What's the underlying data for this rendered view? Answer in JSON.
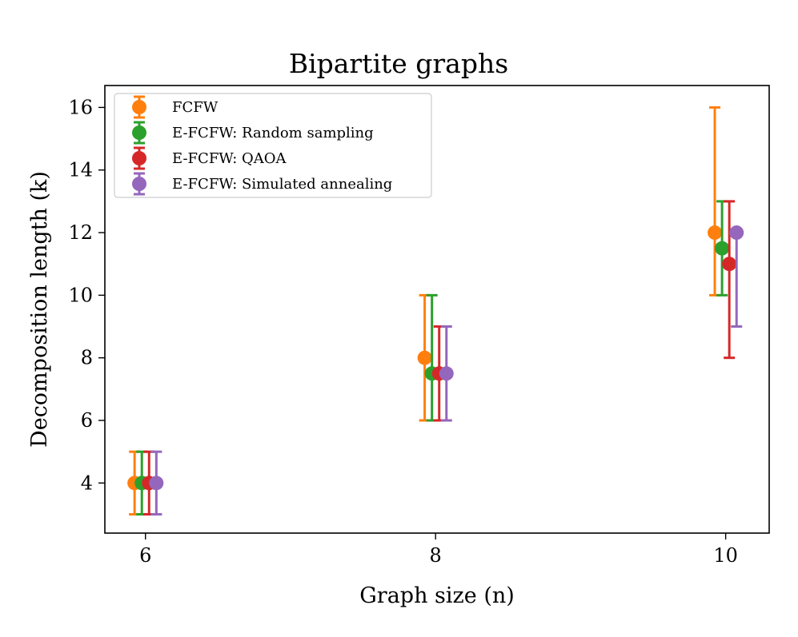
{
  "chart_data": {
    "type": "scatter",
    "title": "Bipartite graphs",
    "xlabel": "Graph size (n)",
    "ylabel": "Decomposition length (k)",
    "x_ticks": [
      6,
      8,
      10
    ],
    "y_ticks": [
      4,
      6,
      8,
      10,
      12,
      14,
      16
    ],
    "xlim": [
      5.72,
      10.3
    ],
    "ylim": [
      2.4,
      16.7
    ],
    "legend_position": "upper-left",
    "series": [
      {
        "name": "FCFW",
        "color": "#ff7f0e",
        "offset": -0.075,
        "points": [
          {
            "x": 6,
            "y": 4,
            "ymin": 3,
            "ymax": 5
          },
          {
            "x": 8,
            "y": 8,
            "ymin": 6,
            "ymax": 10
          },
          {
            "x": 10,
            "y": 12,
            "ymin": 10,
            "ymax": 16
          }
        ]
      },
      {
        "name": "E-FCFW: Random sampling",
        "color": "#2ca02c",
        "offset": -0.025,
        "points": [
          {
            "x": 6,
            "y": 4,
            "ymin": 3,
            "ymax": 5
          },
          {
            "x": 8,
            "y": 7.5,
            "ymin": 6,
            "ymax": 10
          },
          {
            "x": 10,
            "y": 11.5,
            "ymin": 10,
            "ymax": 13
          }
        ]
      },
      {
        "name": "E-FCFW: QAOA",
        "color": "#d62728",
        "offset": 0.025,
        "points": [
          {
            "x": 6,
            "y": 4,
            "ymin": 3,
            "ymax": 5
          },
          {
            "x": 8,
            "y": 7.5,
            "ymin": 6,
            "ymax": 9
          },
          {
            "x": 10,
            "y": 11,
            "ymin": 8,
            "ymax": 13
          }
        ]
      },
      {
        "name": "E-FCFW: Simulated annealing",
        "color": "#9467bd",
        "offset": 0.075,
        "points": [
          {
            "x": 6,
            "y": 4,
            "ymin": 3,
            "ymax": 5
          },
          {
            "x": 8,
            "y": 7.5,
            "ymin": 6,
            "ymax": 9
          },
          {
            "x": 10,
            "y": 12,
            "ymin": 9,
            "ymax": 12
          }
        ]
      }
    ]
  }
}
